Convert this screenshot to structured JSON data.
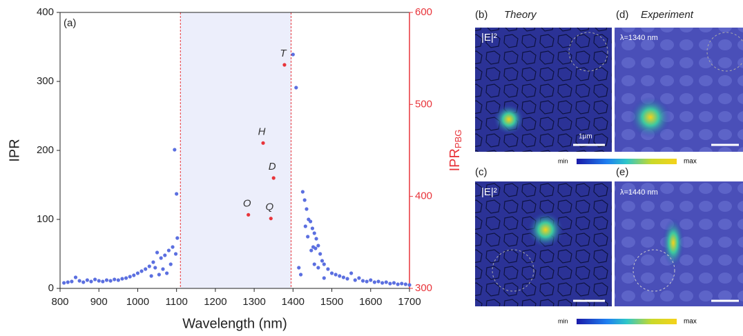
{
  "chart_data": {
    "type": "scatter",
    "panel_label": "(a)",
    "xlabel": "Wavelength (nm)",
    "ylabel": "IPR",
    "y2label": {
      "text": "IPR",
      "sub": "PBG"
    },
    "xlim": [
      800,
      1700
    ],
    "xticks": [
      800,
      900,
      1000,
      1100,
      1200,
      1300,
      1400,
      1500,
      1600,
      1700
    ],
    "ylim": [
      0,
      400
    ],
    "yticks": [
      0,
      100,
      200,
      300,
      400
    ],
    "y2lim": [
      300,
      600
    ],
    "y2ticks": [
      300,
      400,
      500,
      600
    ],
    "band": [
      1110,
      1395
    ],
    "series": [
      {
        "color": "#5b6fe0",
        "x": [
          810,
          820,
          830,
          840,
          850,
          860,
          870,
          880,
          890,
          900,
          910,
          920,
          930,
          940,
          950,
          960,
          970,
          980,
          990,
          1000,
          1010,
          1020,
          1030,
          1040,
          1050,
          1060,
          1070,
          1080,
          1090,
          1095,
          1100,
          1102,
          1098,
          1045,
          1065,
          1085,
          1075,
          1055,
          1035,
          1400,
          1408,
          1425,
          1430,
          1435,
          1440,
          1445,
          1450,
          1455,
          1460,
          1465,
          1452,
          1458,
          1447,
          1470,
          1475,
          1438,
          1432,
          1420,
          1415,
          1480,
          1490,
          1500,
          1510,
          1520,
          1530,
          1540,
          1550,
          1560,
          1570,
          1580,
          1590,
          1600,
          1610,
          1620,
          1630,
          1640,
          1650,
          1660,
          1670,
          1680,
          1690,
          1700,
          1465,
          1455,
          1480
        ],
        "values": [
          8,
          9,
          10,
          16,
          11,
          9,
          12,
          10,
          13,
          11,
          10,
          12,
          11,
          13,
          12,
          14,
          15,
          17,
          19,
          22,
          25,
          28,
          32,
          38,
          52,
          44,
          48,
          55,
          60,
          201,
          137,
          73,
          50,
          30,
          28,
          35,
          22,
          20,
          18,
          339,
          291,
          140,
          128,
          115,
          100,
          97,
          87,
          80,
          72,
          62,
          60,
          58,
          55,
          50,
          40,
          75,
          90,
          20,
          30,
          35,
          28,
          22,
          20,
          18,
          16,
          14,
          22,
          12,
          15,
          11,
          10,
          12,
          9,
          10,
          8,
          9,
          7,
          8,
          6,
          7,
          6,
          5,
          30,
          35,
          15
        ]
      },
      {
        "color": "#e8343a",
        "axis": "y2",
        "labels": [
          "O",
          "Q",
          "D",
          "H",
          "T"
        ],
        "x": [
          1285,
          1343,
          1350,
          1323,
          1378
        ],
        "values": [
          380,
          376,
          420,
          458,
          543
        ]
      }
    ]
  },
  "panels": [
    {
      "label": "(b)",
      "title": "Theory",
      "tag": "|E|²",
      "scale": "1μm"
    },
    {
      "label": "(d)",
      "title": "Experiment",
      "tag": "λ=1340 nm"
    },
    {
      "label": "(c)",
      "tag": "|E|²"
    },
    {
      "label": "(e)",
      "tag": "λ=1440 nm"
    }
  ],
  "colorbar": {
    "min": "min",
    "max": "max"
  }
}
